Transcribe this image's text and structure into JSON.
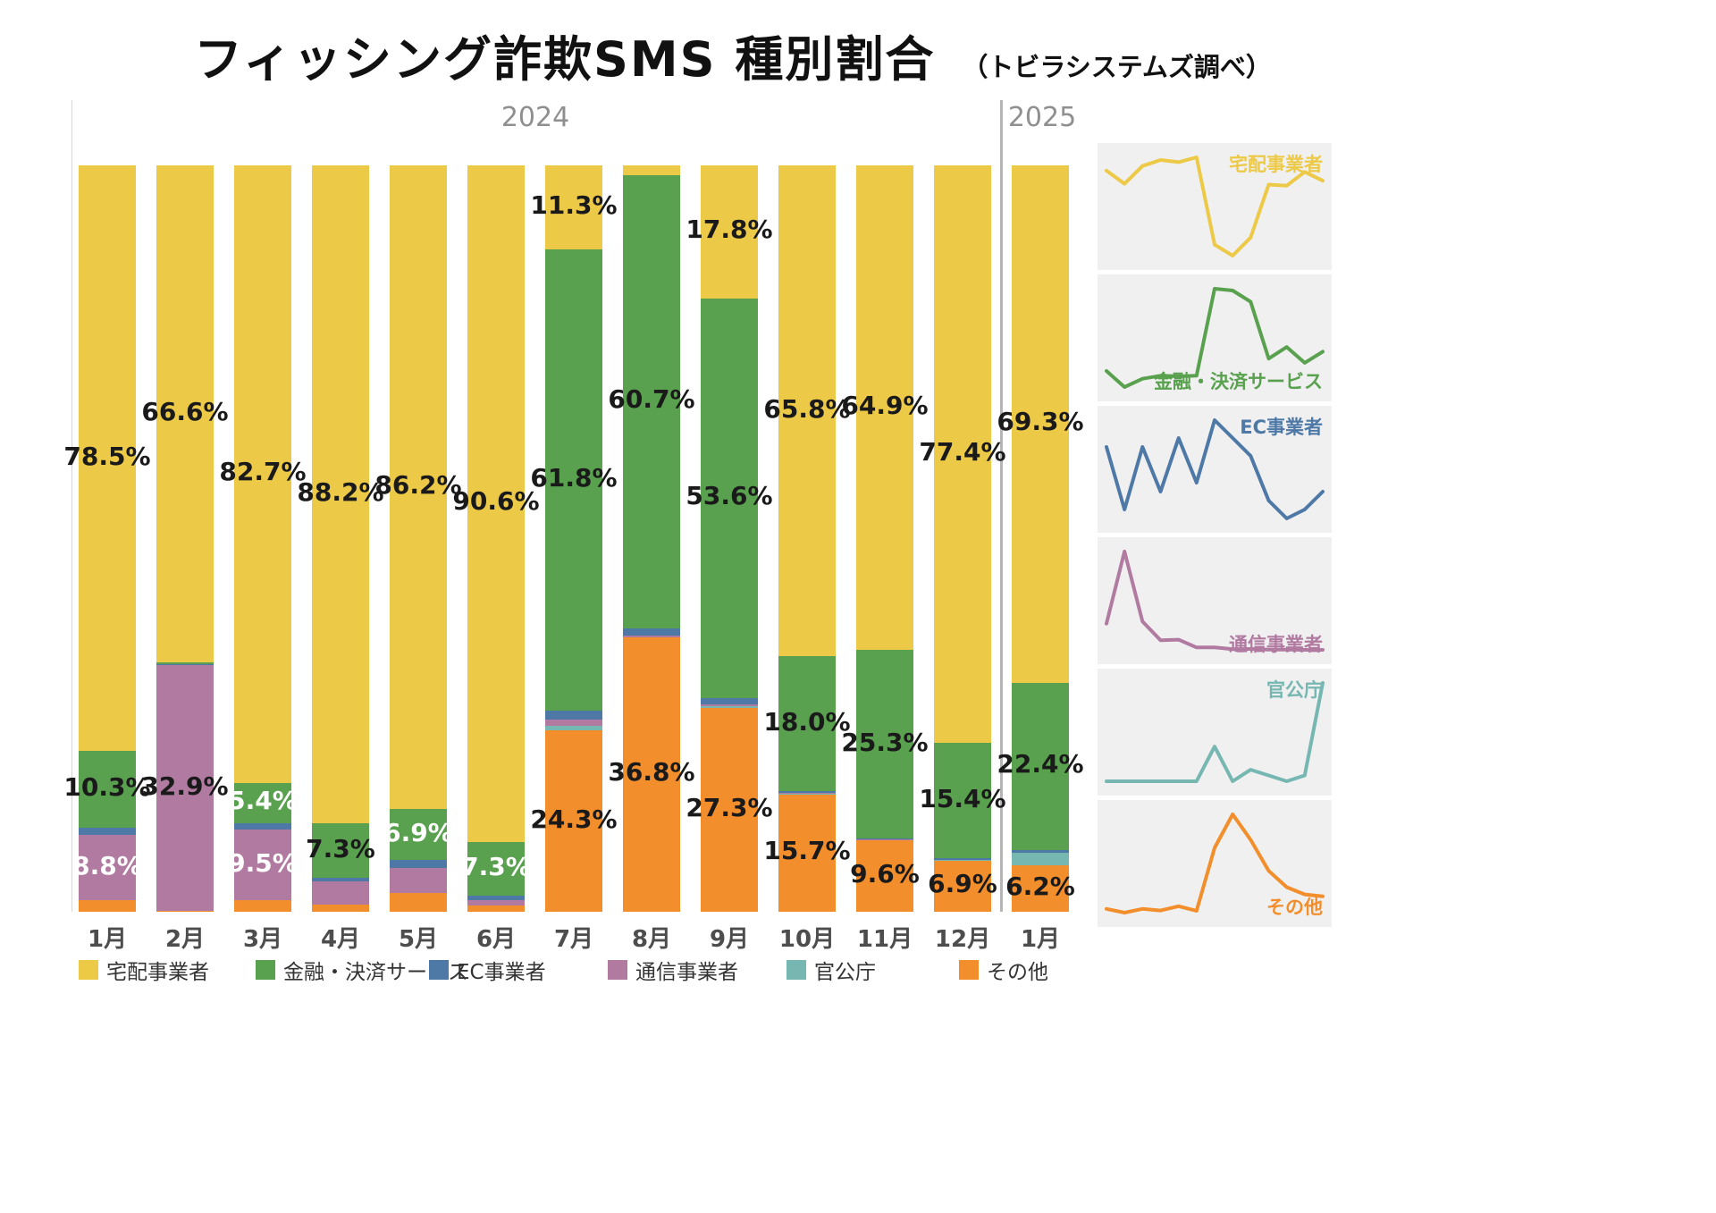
{
  "title": "フィッシング詐欺SMS 種別割合",
  "subtitle": "（トビラシステムズ調べ）",
  "year_labels": [
    "2024",
    "2025"
  ],
  "chart_data": {
    "type": "bar",
    "stacked": true,
    "unit": "%",
    "ylim": [
      0,
      100
    ],
    "legend_position": "bottom",
    "categories": [
      "1月",
      "2月",
      "3月",
      "4月",
      "5月",
      "6月",
      "7月",
      "8月",
      "9月",
      "10月",
      "11月",
      "12月",
      "1月"
    ],
    "series": [
      {
        "name": "その他",
        "color": "#F28E2B",
        "values": [
          1.5,
          0.1,
          1.5,
          0.9,
          2.5,
          0.8,
          24.3,
          36.8,
          27.3,
          15.7,
          9.6,
          6.9,
          6.2
        ]
      },
      {
        "name": "官公庁",
        "color": "#76B7B2",
        "values": [
          0,
          0,
          0,
          0,
          0,
          0,
          0.6,
          0,
          0.2,
          0.1,
          0,
          0.1,
          1.7
        ]
      },
      {
        "name": "通信事業者",
        "color": "#B07AA1",
        "values": [
          8.8,
          32.9,
          9.5,
          3.2,
          3.4,
          0.8,
          0.8,
          0.2,
          0.3,
          0.1,
          0.1,
          0,
          0
        ]
      },
      {
        "name": "EC事業者",
        "color": "#4E79A7",
        "values": [
          0.9,
          0.2,
          0.9,
          0.4,
          1.0,
          0.5,
          1.2,
          1.0,
          0.8,
          0.3,
          0.1,
          0.2,
          0.4
        ]
      },
      {
        "name": "金融・決済サービス",
        "color": "#59A14F",
        "values": [
          10.3,
          0.2,
          5.4,
          7.3,
          6.9,
          7.3,
          61.8,
          60.7,
          53.6,
          18.0,
          25.3,
          15.4,
          22.4
        ]
      },
      {
        "name": "宅配事業者",
        "color": "#EDC948",
        "values": [
          78.5,
          66.6,
          82.7,
          88.2,
          86.2,
          90.6,
          11.3,
          1.3,
          17.8,
          65.8,
          64.9,
          77.4,
          69.3
        ]
      }
    ],
    "bar_labels": [
      {
        "month": 0,
        "series": "宅配事業者",
        "text": "78.5%",
        "color": "#1a1a1a"
      },
      {
        "month": 0,
        "series": "金融・決済サービス",
        "text": "10.3%",
        "color": "#1a1a1a"
      },
      {
        "month": 0,
        "series": "通信事業者",
        "text": "8.8%",
        "color": "#ffffff"
      },
      {
        "month": 1,
        "series": "宅配事業者",
        "text": "66.6%",
        "color": "#1a1a1a"
      },
      {
        "month": 1,
        "series": "通信事業者",
        "text": "32.9%",
        "color": "#1a1a1a"
      },
      {
        "month": 2,
        "series": "宅配事業者",
        "text": "82.7%",
        "color": "#1a1a1a"
      },
      {
        "month": 2,
        "series": "金融・決済サービス",
        "text": "5.4%",
        "color": "#ffffff"
      },
      {
        "month": 2,
        "series": "通信事業者",
        "text": "9.5%",
        "color": "#ffffff"
      },
      {
        "month": 3,
        "series": "宅配事業者",
        "text": "88.2%",
        "color": "#1a1a1a"
      },
      {
        "month": 3,
        "series": "金融・決済サービス",
        "text": "7.3%",
        "color": "#1a1a1a"
      },
      {
        "month": 4,
        "series": "宅配事業者",
        "text": "86.2%",
        "color": "#1a1a1a"
      },
      {
        "month": 4,
        "series": "金融・決済サービス",
        "text": "6.9%",
        "color": "#ffffff"
      },
      {
        "month": 5,
        "series": "宅配事業者",
        "text": "90.6%",
        "color": "#1a1a1a"
      },
      {
        "month": 5,
        "series": "金融・決済サービス",
        "text": "7.3%",
        "color": "#ffffff"
      },
      {
        "month": 6,
        "series": "宅配事業者",
        "text": "11.3%",
        "color": "#1a1a1a"
      },
      {
        "month": 6,
        "series": "金融・決済サービス",
        "text": "61.8%",
        "color": "#1a1a1a"
      },
      {
        "month": 6,
        "series": "その他",
        "text": "24.3%",
        "color": "#1a1a1a"
      },
      {
        "month": 7,
        "series": "金融・決済サービス",
        "text": "60.7%",
        "color": "#1a1a1a"
      },
      {
        "month": 7,
        "series": "その他",
        "text": "36.8%",
        "color": "#1a1a1a"
      },
      {
        "month": 8,
        "series": "宅配事業者",
        "text": "17.8%",
        "color": "#1a1a1a"
      },
      {
        "month": 8,
        "series": "金融・決済サービス",
        "text": "53.6%",
        "color": "#1a1a1a"
      },
      {
        "month": 8,
        "series": "その他",
        "text": "27.3%",
        "color": "#1a1a1a"
      },
      {
        "month": 9,
        "series": "宅配事業者",
        "text": "65.8%",
        "color": "#1a1a1a"
      },
      {
        "month": 9,
        "series": "金融・決済サービス",
        "text": "18.0%",
        "color": "#1a1a1a"
      },
      {
        "month": 9,
        "series": "その他",
        "text": "15.7%",
        "color": "#1a1a1a"
      },
      {
        "month": 10,
        "series": "宅配事業者",
        "text": "64.9%",
        "color": "#1a1a1a"
      },
      {
        "month": 10,
        "series": "金融・決済サービス",
        "text": "25.3%",
        "color": "#1a1a1a"
      },
      {
        "month": 10,
        "series": "その他",
        "text": "9.6%",
        "color": "#1a1a1a"
      },
      {
        "month": 11,
        "series": "宅配事業者",
        "text": "77.4%",
        "color": "#1a1a1a"
      },
      {
        "month": 11,
        "series": "金融・決済サービス",
        "text": "15.4%",
        "color": "#1a1a1a"
      },
      {
        "month": 11,
        "series": "その他",
        "text": "6.9%",
        "color": "#1a1a1a"
      },
      {
        "month": 12,
        "series": "宅配事業者",
        "text": "69.3%",
        "color": "#1a1a1a"
      },
      {
        "month": 12,
        "series": "金融・決済サービス",
        "text": "22.4%",
        "color": "#1a1a1a"
      },
      {
        "month": 12,
        "series": "その他",
        "text": "6.2%",
        "color": "#1a1a1a"
      }
    ]
  },
  "legend": [
    {
      "label": "宅配事業者",
      "color": "#EDC948"
    },
    {
      "label": "金融・決済サービス",
      "color": "#59A14F"
    },
    {
      "label": "EC事業者",
      "color": "#4E79A7"
    },
    {
      "label": "通信事業者",
      "color": "#B07AA1"
    },
    {
      "label": "官公庁",
      "color": "#76B7B2"
    },
    {
      "label": "その他",
      "color": "#F28E2B"
    }
  ],
  "sparkline_panels": [
    {
      "name": "宅配事業者",
      "series": "宅配事業者",
      "color": "#EDC948",
      "label_corner": "top-right"
    },
    {
      "name": "金融・決済サービス",
      "series": "金融・決済サービス",
      "color": "#59A14F",
      "label_corner": "bottom-right"
    },
    {
      "name": "EC事業者",
      "series": "EC事業者",
      "color": "#4E79A7",
      "label_corner": "top-right"
    },
    {
      "name": "通信事業者",
      "series": "通信事業者",
      "color": "#B07AA1",
      "label_corner": "bottom-right"
    },
    {
      "name": "官公庁",
      "series": "官公庁",
      "color": "#76B7B2",
      "label_corner": "top-right"
    },
    {
      "name": "その他",
      "series": "その他",
      "color": "#F28E2B",
      "label_corner": "bottom-right"
    }
  ]
}
